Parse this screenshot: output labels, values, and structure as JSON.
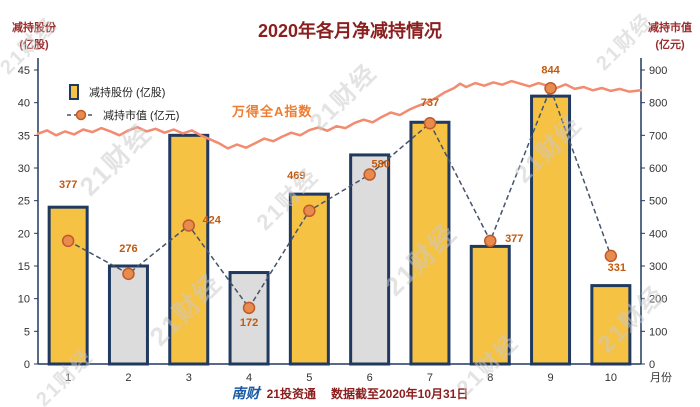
{
  "watermark": {
    "text": "21财经"
  },
  "title": "2020年各月净减持情况",
  "left_axis": {
    "title_line1": "减持股份",
    "title_line2": "(亿股)",
    "ticks": [
      0,
      5,
      10,
      15,
      20,
      25,
      30,
      35,
      40,
      45
    ]
  },
  "right_axis": {
    "title_line1": "减持市值",
    "title_line2": "(亿元)",
    "ticks": [
      0,
      100,
      200,
      300,
      400,
      500,
      600,
      700,
      800,
      900
    ]
  },
  "x_axis": {
    "label": "月份",
    "categories": [
      "1",
      "2",
      "3",
      "4",
      "5",
      "6",
      "7",
      "8",
      "9",
      "10"
    ]
  },
  "legend": {
    "bar_label": "减持股份 (亿股)",
    "line_label": "减持市值 (亿元)",
    "position": "top-left"
  },
  "annotation": {
    "index_label": "万得全A指数"
  },
  "footer": {
    "logo": "南财",
    "source": "21投资通",
    "note": "数据截至2020年10月31日"
  },
  "colors": {
    "bar_fill": "#F6C244",
    "bar_alt_fill": "#DCDCDC",
    "bar_border": "#20395F",
    "axis": "#20395F",
    "dash_line": "#44546A",
    "marker": "#E88B4F",
    "marker_border": "#C05A2A",
    "index_line": "#F28B70",
    "value_label": "#C05A11",
    "title": "#8B1E1E",
    "footer": "#8B1E1E",
    "logo_blue": "#1A5BA6"
  },
  "chart_data": {
    "type": "combo",
    "title": "2020年各月净减持情况",
    "categories": [
      "1",
      "2",
      "3",
      "4",
      "5",
      "6",
      "7",
      "8",
      "9",
      "10"
    ],
    "left_ylim": [
      0,
      45
    ],
    "right_ylim": [
      0,
      900
    ],
    "grid": false,
    "legend_position": "top-left",
    "series": [
      {
        "name": "减持股份(亿股)",
        "type": "bar",
        "axis": "left",
        "values": [
          24,
          15,
          35,
          14,
          26,
          32,
          37,
          18,
          41,
          12
        ],
        "gray_indices": [
          1,
          3,
          5
        ]
      },
      {
        "name": "减持市值(亿元)",
        "type": "line",
        "axis": "right",
        "style": "dashed-with-markers",
        "values": [
          377,
          276,
          424,
          172,
          469,
          580,
          737,
          377,
          844,
          331
        ]
      },
      {
        "name": "万得全A指数",
        "type": "line",
        "axis": "right",
        "style": "solid",
        "points": [
          [
            0.0,
            705
          ],
          [
            0.015,
            715
          ],
          [
            0.03,
            700
          ],
          [
            0.045,
            712
          ],
          [
            0.06,
            703
          ],
          [
            0.075,
            718
          ],
          [
            0.09,
            710
          ],
          [
            0.105,
            722
          ],
          [
            0.12,
            712
          ],
          [
            0.135,
            700
          ],
          [
            0.15,
            715
          ],
          [
            0.165,
            725
          ],
          [
            0.18,
            712
          ],
          [
            0.195,
            720
          ],
          [
            0.21,
            708
          ],
          [
            0.225,
            718
          ],
          [
            0.24,
            706
          ],
          [
            0.255,
            715
          ],
          [
            0.27,
            700
          ],
          [
            0.285,
            688
          ],
          [
            0.3,
            676
          ],
          [
            0.315,
            660
          ],
          [
            0.33,
            672
          ],
          [
            0.345,
            662
          ],
          [
            0.36,
            676
          ],
          [
            0.375,
            690
          ],
          [
            0.39,
            682
          ],
          [
            0.405,
            696
          ],
          [
            0.42,
            708
          ],
          [
            0.435,
            700
          ],
          [
            0.45,
            716
          ],
          [
            0.465,
            724
          ],
          [
            0.48,
            714
          ],
          [
            0.495,
            728
          ],
          [
            0.51,
            722
          ],
          [
            0.525,
            738
          ],
          [
            0.54,
            748
          ],
          [
            0.555,
            740
          ],
          [
            0.57,
            756
          ],
          [
            0.585,
            770
          ],
          [
            0.6,
            762
          ],
          [
            0.615,
            778
          ],
          [
            0.63,
            790
          ],
          [
            0.645,
            800
          ],
          [
            0.66,
            815
          ],
          [
            0.675,
            832
          ],
          [
            0.69,
            845
          ],
          [
            0.7,
            858
          ],
          [
            0.71,
            848
          ],
          [
            0.725,
            860
          ],
          [
            0.74,
            852
          ],
          [
            0.755,
            862
          ],
          [
            0.77,
            855
          ],
          [
            0.785,
            866
          ],
          [
            0.8,
            858
          ],
          [
            0.815,
            850
          ],
          [
            0.83,
            860
          ],
          [
            0.845,
            852
          ],
          [
            0.86,
            845
          ],
          [
            0.875,
            856
          ],
          [
            0.89,
            842
          ],
          [
            0.905,
            848
          ],
          [
            0.92,
            838
          ],
          [
            0.935,
            845
          ],
          [
            0.95,
            836
          ],
          [
            0.965,
            842
          ],
          [
            0.98,
            834
          ],
          [
            1.0,
            838
          ]
        ]
      }
    ]
  }
}
